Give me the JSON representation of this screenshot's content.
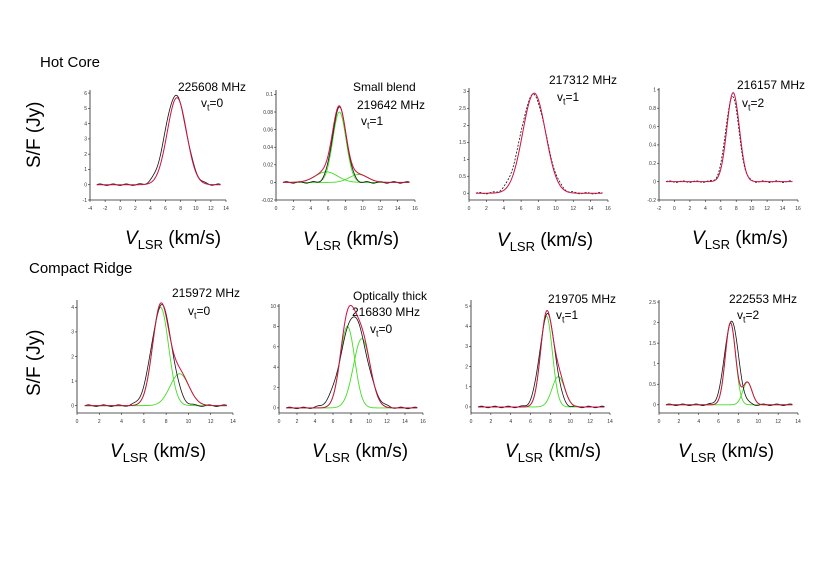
{
  "sections": {
    "hot_core": "Hot Core",
    "compact_ridge": "Compact Ridge"
  },
  "axes": {
    "ylabel": "S/F (Jy)",
    "xlabel_v": "V",
    "xlabel_sub": "LSR",
    "xlabel_unit": " (km/s)"
  },
  "colors": {
    "observed": "#111111",
    "fit": "#cc1144",
    "component": "#44dd22",
    "axis": "#222222"
  },
  "chart_data": [
    {
      "type": "line",
      "row": "Hot Core",
      "title": "225608 MHz",
      "transition": "vt=0",
      "note": "",
      "xlim": [
        -4,
        14
      ],
      "ylim": [
        -1,
        6.2
      ],
      "xticks": [
        -4,
        -2,
        0,
        2,
        4,
        6,
        8,
        10,
        12,
        14
      ],
      "yticks": [
        -1,
        0,
        1,
        2,
        3,
        4,
        5,
        6
      ],
      "fit": [
        {
          "center": 7.5,
          "fwhm": 3.0,
          "peak": 5.7
        }
      ],
      "observed": {
        "center": 7.35,
        "fwhm": 3.25,
        "peak": 5.85,
        "offset": 0.1,
        "style": "solid"
      },
      "show_components": false
    },
    {
      "type": "line",
      "row": "Hot Core",
      "title": "219642 MHz",
      "transition": "vt=1",
      "note": "Small blend",
      "xlim": [
        0,
        16
      ],
      "ylim": [
        -0.02,
        0.105
      ],
      "xticks": [
        0,
        2,
        4,
        6,
        8,
        10,
        12,
        14,
        16
      ],
      "yticks": [
        -0.02,
        0,
        0.02,
        0.04,
        0.06,
        0.08,
        0.1
      ],
      "fit": [
        {
          "center": 7.3,
          "fwhm": 1.8,
          "peak": 0.08
        },
        {
          "center": 5.8,
          "fwhm": 3.0,
          "peak": 0.012
        },
        {
          "center": 9.5,
          "fwhm": 2.5,
          "peak": 0.009
        }
      ],
      "observed": {
        "center": 7.3,
        "fwhm": 1.9,
        "peak": 0.085,
        "offset": 0.0,
        "style": "solid"
      },
      "show_components": true
    },
    {
      "type": "line",
      "row": "Hot Core",
      "title": "217312 MHz",
      "transition": "vt=1",
      "note": "",
      "xlim": [
        0,
        16
      ],
      "ylim": [
        -0.2,
        3.1
      ],
      "xticks": [
        0,
        2,
        4,
        6,
        8,
        10,
        12,
        14,
        16
      ],
      "yticks": [
        0,
        0.5,
        1.0,
        1.5,
        2.0,
        2.5,
        3.0
      ],
      "fit": [
        {
          "center": 7.5,
          "fwhm": 3.1,
          "peak": 2.95
        }
      ],
      "observed": {
        "center": 7.4,
        "fwhm": 3.4,
        "peak": 2.9,
        "offset": 0.05,
        "style": "dashed"
      },
      "show_components": false
    },
    {
      "type": "line",
      "row": "Hot Core",
      "title": "216157 MHz",
      "transition": "vt=2",
      "note": "",
      "xlim": [
        -2,
        16
      ],
      "ylim": [
        -0.2,
        1.02
      ],
      "xticks": [
        -2,
        0,
        2,
        4,
        6,
        8,
        10,
        12,
        14,
        16
      ],
      "yticks": [
        -0.2,
        0,
        0.2,
        0.4,
        0.6,
        0.8,
        1.0
      ],
      "fit": [
        {
          "center": 7.6,
          "fwhm": 1.9,
          "peak": 0.97
        }
      ],
      "observed": {
        "center": 7.5,
        "fwhm": 2.0,
        "peak": 0.93,
        "offset": 0.0,
        "style": "dashed"
      },
      "show_components": false
    },
    {
      "type": "line",
      "row": "Compact Ridge",
      "title": "215972 MHz",
      "transition": "vt=0",
      "note": "",
      "xlim": [
        0,
        14
      ],
      "ylim": [
        -0.3,
        4.3
      ],
      "xticks": [
        0,
        2,
        4,
        6,
        8,
        10,
        12,
        14
      ],
      "yticks": [
        0,
        1,
        2,
        3,
        4
      ],
      "fit": [
        {
          "center": 7.5,
          "fwhm": 1.7,
          "peak": 4.0
        },
        {
          "center": 9.2,
          "fwhm": 2.0,
          "peak": 1.3
        }
      ],
      "observed": {
        "center": 7.6,
        "fwhm": 2.1,
        "peak": 4.1,
        "offset": 0.1,
        "style": "solid"
      },
      "show_components": true
    },
    {
      "type": "line",
      "row": "Compact Ridge",
      "title": "216830 MHz",
      "transition": "vt=0",
      "note": "Optically thick",
      "xlim": [
        0,
        16
      ],
      "ylim": [
        -0.5,
        10.2
      ],
      "xticks": [
        0,
        2,
        4,
        6,
        8,
        10,
        12,
        14,
        16
      ],
      "yticks": [
        0,
        2,
        4,
        6,
        8,
        10
      ],
      "fit": [
        {
          "center": 7.6,
          "fwhm": 1.9,
          "peak": 8.0
        },
        {
          "center": 9.2,
          "fwhm": 2.2,
          "peak": 6.8
        }
      ],
      "observed": {
        "center": 8.3,
        "fwhm": 3.2,
        "peak": 9.0,
        "offset": 0.1,
        "style": "solid"
      },
      "show_components": true
    },
    {
      "type": "line",
      "row": "Compact Ridge",
      "title": "219705 MHz",
      "transition": "vt=1",
      "note": "",
      "xlim": [
        0,
        14
      ],
      "ylim": [
        -0.3,
        5.3
      ],
      "xticks": [
        0,
        2,
        4,
        6,
        8,
        10,
        12,
        14
      ],
      "yticks": [
        0,
        1,
        2,
        3,
        4,
        5
      ],
      "fit": [
        {
          "center": 7.6,
          "fwhm": 1.4,
          "peak": 4.5
        },
        {
          "center": 8.8,
          "fwhm": 1.5,
          "peak": 1.5
        }
      ],
      "observed": {
        "center": 7.7,
        "fwhm": 1.8,
        "peak": 4.6,
        "offset": 0.0,
        "style": "solid"
      },
      "show_components": true
    },
    {
      "type": "line",
      "row": "Compact Ridge",
      "title": "222553 MHz",
      "transition": "vt=2",
      "note": "",
      "xlim": [
        0,
        14
      ],
      "ylim": [
        -0.2,
        2.55
      ],
      "xticks": [
        0,
        2,
        4,
        6,
        8,
        10,
        12,
        14
      ],
      "yticks": [
        0,
        0.5,
        1.0,
        1.5,
        2.0,
        2.5
      ],
      "fit": [
        {
          "center": 7.2,
          "fwhm": 1.2,
          "peak": 2.0
        },
        {
          "center": 8.9,
          "fwhm": 1.1,
          "peak": 0.55
        }
      ],
      "observed": {
        "center": 7.3,
        "fwhm": 1.6,
        "peak": 2.05,
        "offset": 0.0,
        "style": "solid"
      },
      "show_components": true
    }
  ]
}
